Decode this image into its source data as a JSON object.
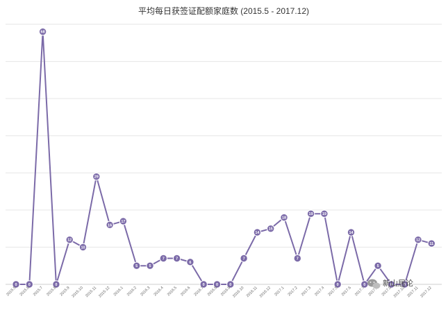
{
  "chart_data": {
    "type": "line",
    "title": "平均每日获签证配额家庭数 (2015.5 - 2017.12)",
    "xlabel": "",
    "ylabel": "",
    "ylim": [
      0,
      70
    ],
    "grid": true,
    "legend": "none",
    "categories": [
      "2015.5",
      "2015.6",
      "2015.7",
      "2015.8",
      "2015.9",
      "2015.10",
      "2015.11",
      "2015.12",
      "2016.1",
      "2016.2",
      "2016.3",
      "2016.4",
      "2016.5",
      "2016.6",
      "2016.7",
      "2016.8",
      "2016.9",
      "2016.10",
      "2016.11",
      "2016.12",
      "2017.1",
      "2017.2",
      "2017.3",
      "2017.4",
      "2017.5",
      "2017.6",
      "2017.7",
      "2017.8",
      "2017.9",
      "2017.10",
      "2017.11",
      "2017.12"
    ],
    "series": [
      {
        "values": [
          0,
          0,
          68,
          0,
          12,
          10,
          29,
          16,
          17,
          5,
          5,
          7,
          7,
          6,
          0,
          0,
          0,
          7,
          14,
          15,
          18,
          7,
          19,
          19,
          0,
          14,
          0,
          5,
          0,
          0,
          12,
          11
        ]
      }
    ],
    "colors": {
      "line": "#7b6aa8",
      "marker": "#7b6aa8",
      "grid": "#e6e6e6",
      "text": "#333333"
    }
  },
  "watermark": {
    "text": "新山居论"
  }
}
